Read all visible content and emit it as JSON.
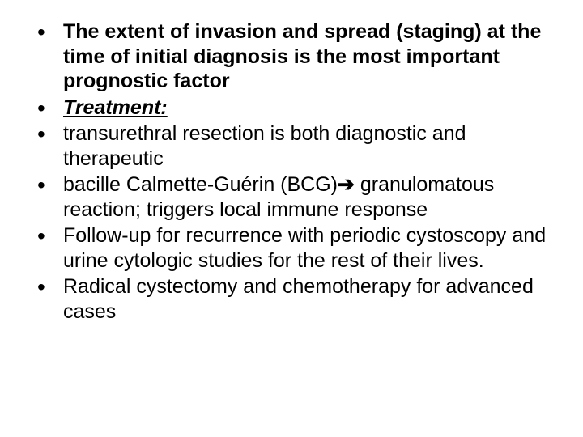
{
  "slide": {
    "background_color": "#ffffff",
    "text_color": "#000000",
    "font_family": "Arial",
    "font_size_pt": 19,
    "bullets": [
      {
        "text": "The extent of invasion and spread (staging) at the time of initial diagnosis is the most important prognostic factor",
        "style": "bold"
      },
      {
        "text": "Treatment:",
        "style": "heading"
      },
      {
        "text": "transurethral resection is both diagnostic and therapeutic",
        "style": "normal"
      },
      {
        "prefix": "bacille Calmette-Guérin (BCG)",
        "arrow": "➔",
        "suffix": " granulomatous reaction; triggers local immune response",
        "style": "normal"
      },
      {
        "text": "Follow-up for recurrence with periodic cystoscopy and urine cytologic studies for the rest of their lives.",
        "style": "normal"
      },
      {
        "text": "Radical cystectomy and chemotherapy for advanced cases",
        "style": "normal"
      }
    ]
  }
}
